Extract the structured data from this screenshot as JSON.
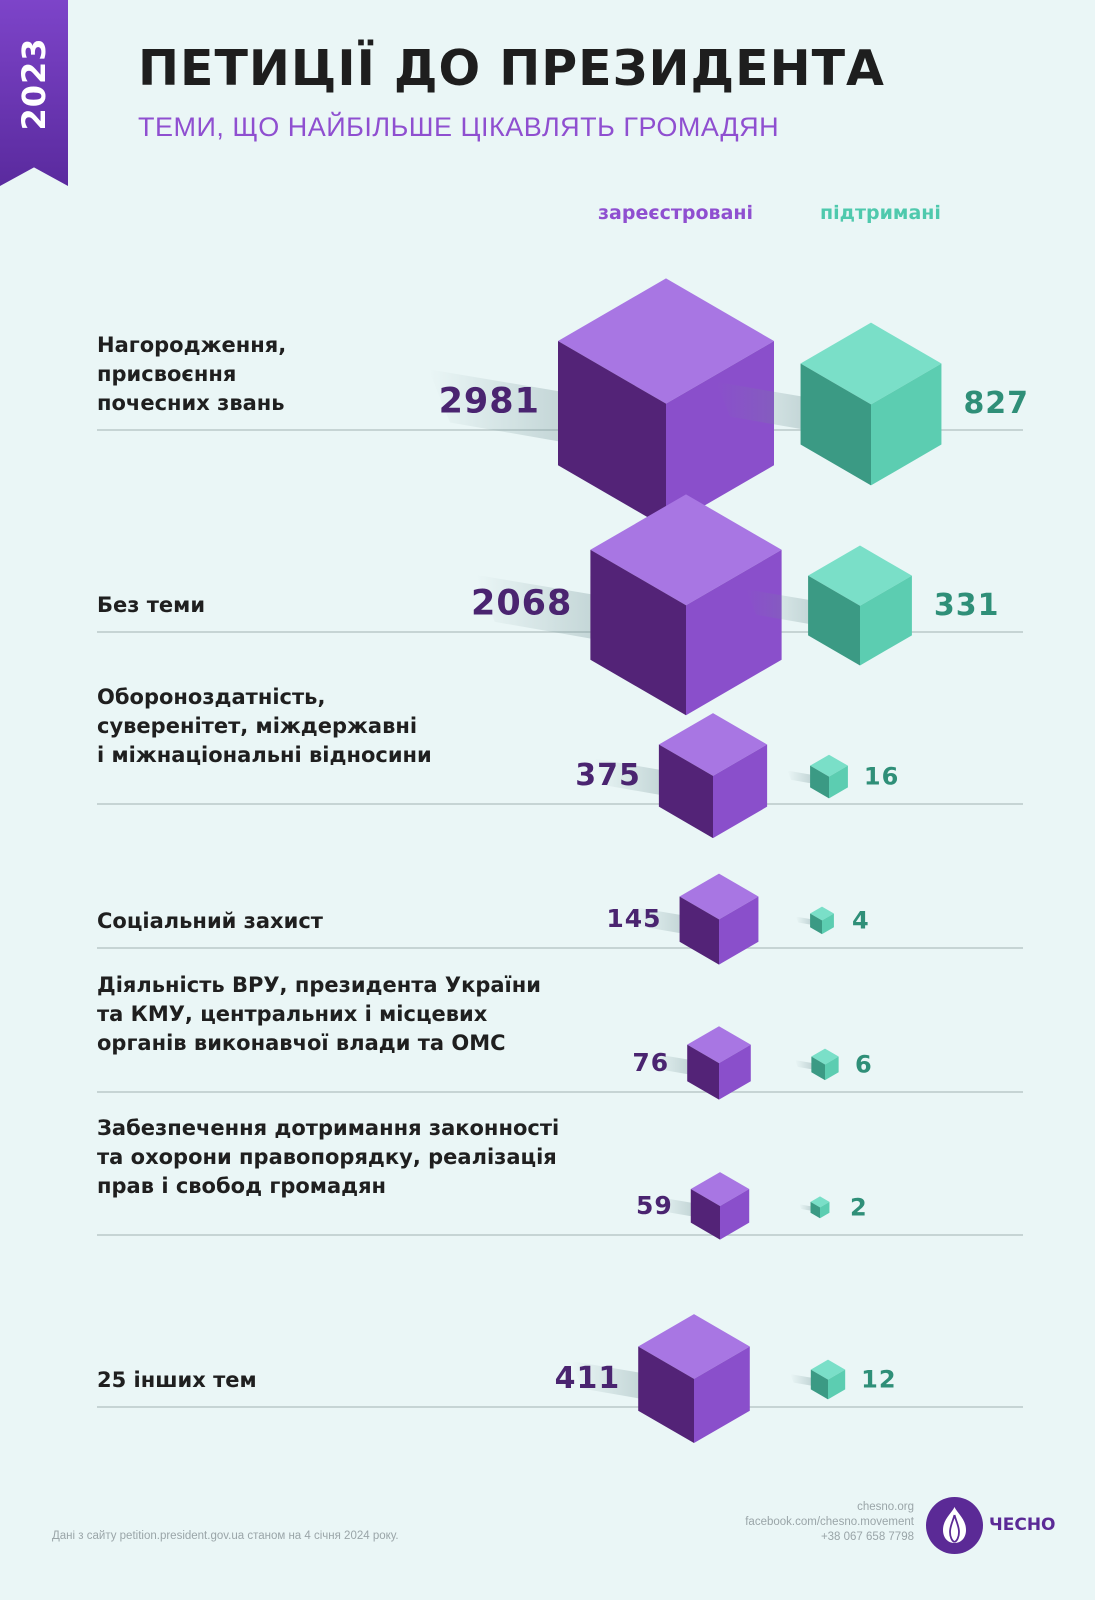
{
  "header": {
    "year": "2023",
    "title": "ПЕТИЦІЇ ДО ПРЕЗИДЕНТА",
    "subtitle": "ТЕМИ, ЩО НАЙБІЛЬШЕ ЦІКАВЛЯТЬ ГРОМАДЯН"
  },
  "chart_data": {
    "type": "bar",
    "categories": [
      "Нагородження, присвоєння почесних звань",
      "Без теми",
      "Обороноздатність, суверенітет, міждержавні і міжнаціональні відносини",
      "Соціальний захист",
      "Діяльність ВРУ, президента України та КМУ, центральних і місцевих органів виконавчої влади та ОМС",
      "Забезпечення дотримання законності та охорони правопорядку, реалізація прав і свобод громадян",
      "25 інших тем"
    ],
    "category_lines": [
      [
        "Нагородження,",
        "присвоєння",
        "почесних звань"
      ],
      [
        "Без теми"
      ],
      [
        "Обороноздатність,",
        "суверенітет, міждержавні",
        "і міжнаціональні відносини"
      ],
      [
        "Соціальний захист"
      ],
      [
        "Діяльність ВРУ, президента України",
        "та КМУ, центральних і місцевих",
        "органів виконавчої влади та ОМС"
      ],
      [
        "Забезпечення дотримання законності",
        "та охорони правопорядку, реалізація",
        "прав і свобод громадян"
      ],
      [
        "25 інших тем"
      ]
    ],
    "series": [
      {
        "name": "зареєстровані",
        "values": [
          2981,
          2068,
          375,
          145,
          76,
          59,
          411
        ]
      },
      {
        "name": "підтримані",
        "values": [
          827,
          331,
          16,
          4,
          6,
          2,
          12
        ]
      }
    ],
    "colors": {
      "registered_top": "#a876e3",
      "registered_right": "#8a4fcb",
      "registered_left": "#532377",
      "registered_label": "#4a2470",
      "supported_top": "#7adfc8",
      "supported_right": "#5ccdb1",
      "supported_left": "#3b9a84",
      "supported_label": "#2f8f78",
      "divider": "#b9c9c9"
    }
  },
  "footer": {
    "source": "Дані з сайту petition.president.gov.ua станом на 4 січня 2024 року.",
    "site": "chesno.org",
    "facebook": "facebook.com/chesno.movement",
    "phone": "+38 067 658 7798",
    "logo_text": "ЧЕСНО"
  }
}
